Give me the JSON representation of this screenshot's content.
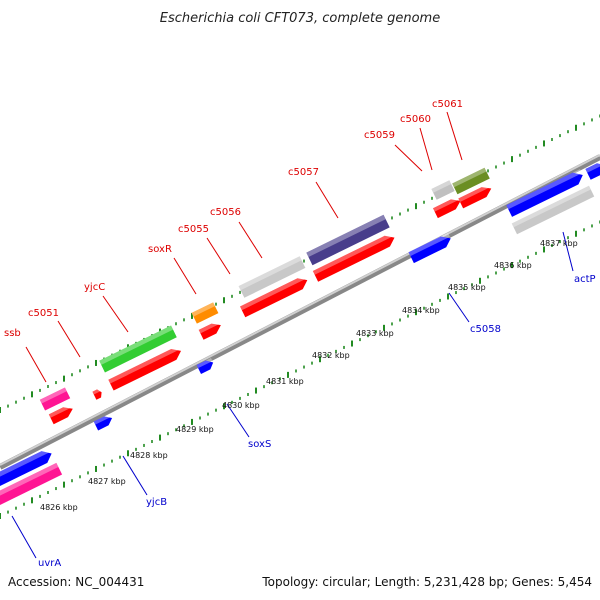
{
  "title": "Escherichia coli CFT073, complete genome",
  "footer": {
    "accession": "Accession: NC_004431",
    "summary": "Topology: circular; Length: 5,231,428 bp; Genes: 5,454"
  },
  "colors": {
    "forward_label": "#dd0000",
    "reverse_label": "#0000cc",
    "tick_dash": "#228b22",
    "backbone": "#999999"
  },
  "forward_genes": [
    {
      "name": "ssb",
      "color": "#ff1493"
    },
    {
      "name": "c5051",
      "color": "#ff0000"
    },
    {
      "name": "yjcC",
      "color": "#32cd32"
    },
    {
      "name": "soxR",
      "color": "#ff8c00"
    },
    {
      "name": "c5055",
      "color": "#ff0000"
    },
    {
      "name": "c5056",
      "color": "#c0c0c0"
    },
    {
      "name": "c5057",
      "color": "#483d8b"
    },
    {
      "name": "c5059",
      "color": "#c0c0c0"
    },
    {
      "name": "c5060",
      "color": "#ff0000"
    },
    {
      "name": "c5061",
      "color": "#6b8e23"
    }
  ],
  "reverse_genes": [
    {
      "name": "uvrA",
      "color": "#0000ff"
    },
    {
      "name": "yjcB",
      "color": "#0000ff"
    },
    {
      "name": "soxS",
      "color": "#0000ff"
    },
    {
      "name": "c5058",
      "color": "#0000ff"
    },
    {
      "name": "actP",
      "color": "#0000ff"
    }
  ],
  "ticks": [
    "4826 kbp",
    "4827 kbp",
    "4828 kbp",
    "4829 kbp",
    "4830 kbp",
    "4831 kbp",
    "4832 kbp",
    "4833 kbp",
    "4834 kbp",
    "4835 kbp",
    "4836 kbp",
    "4837 kbp"
  ]
}
